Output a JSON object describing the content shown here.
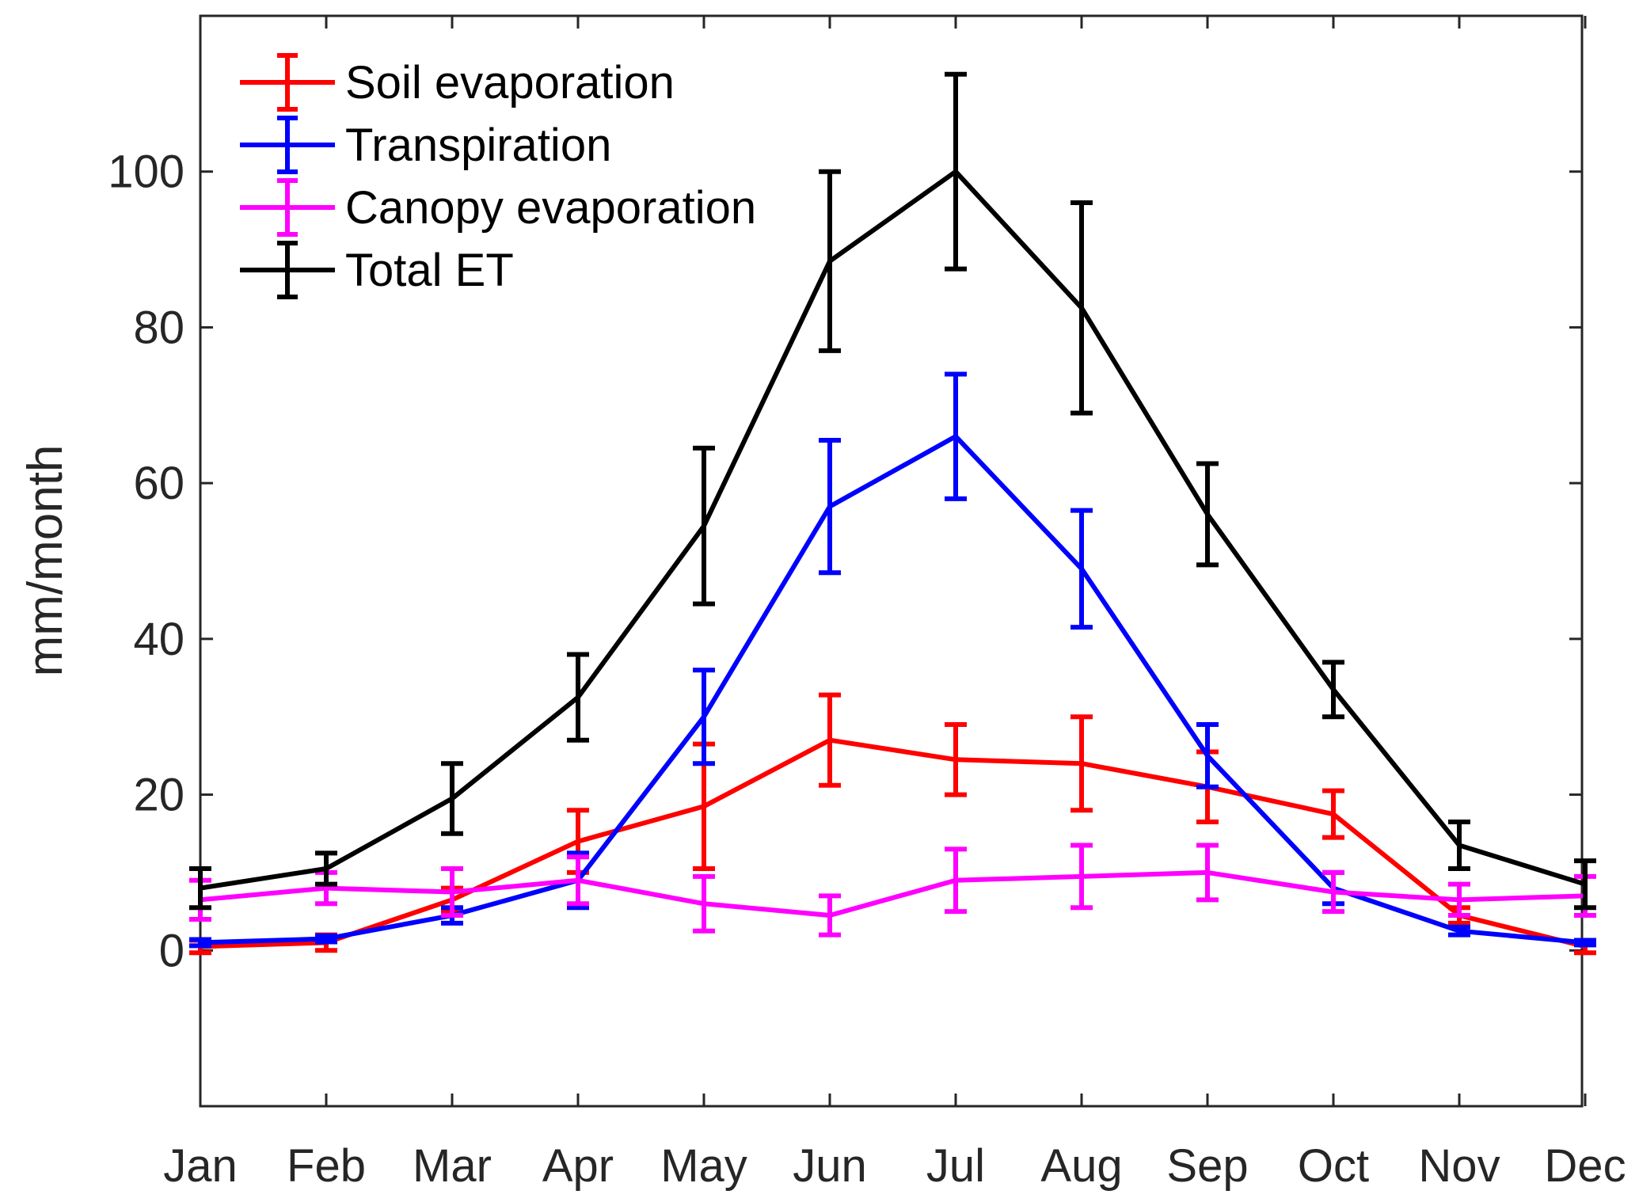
{
  "chart_data": {
    "type": "line",
    "title": "",
    "xlabel": "",
    "ylabel": "mm/month",
    "categories": [
      "Jan",
      "Feb",
      "Mar",
      "Apr",
      "May",
      "Jun",
      "Jul",
      "Aug",
      "Sep",
      "Oct",
      "Nov",
      "Dec"
    ],
    "ylim": [
      -20,
      120
    ],
    "yticks": [
      0,
      20,
      40,
      60,
      80,
      100
    ],
    "grid": false,
    "legend_position": "top-left",
    "series": [
      {
        "name": "Soil evaporation",
        "color": "#ff0000",
        "values": [
          0.5,
          1.0,
          6.5,
          14.0,
          18.5,
          27.0,
          24.5,
          24.0,
          21.0,
          17.5,
          4.5,
          0.5
        ],
        "errors": [
          0.8,
          1.0,
          1.5,
          4.0,
          8.0,
          5.8,
          4.5,
          6.0,
          4.5,
          3.0,
          1.0,
          0.8
        ]
      },
      {
        "name": "Transpiration",
        "color": "#0000ff",
        "values": [
          1.0,
          1.5,
          4.5,
          9.0,
          30.0,
          57.0,
          66.0,
          49.0,
          25.0,
          8.0,
          2.5,
          1.0
        ],
        "errors": [
          0.4,
          0.4,
          1.0,
          3.5,
          6.0,
          8.5,
          8.0,
          7.5,
          4.0,
          2.0,
          0.5,
          0.3
        ]
      },
      {
        "name": "Canopy evaporation",
        "color": "#ff00ff",
        "values": [
          6.5,
          8.0,
          7.5,
          9.0,
          6.0,
          4.5,
          9.0,
          9.5,
          10.0,
          7.5,
          6.5,
          7.0
        ],
        "errors": [
          2.5,
          2.0,
          3.0,
          3.0,
          3.5,
          2.5,
          4.0,
          4.0,
          3.5,
          2.5,
          2.0,
          2.5
        ]
      },
      {
        "name": "Total ET",
        "color": "#000000",
        "values": [
          8.0,
          10.5,
          19.5,
          32.5,
          54.5,
          88.5,
          100.0,
          82.5,
          56.0,
          33.5,
          13.5,
          8.5
        ],
        "errors": [
          2.5,
          2.0,
          4.5,
          5.5,
          10.0,
          11.5,
          12.5,
          13.5,
          6.5,
          3.5,
          3.0,
          3.0
        ]
      }
    ]
  }
}
